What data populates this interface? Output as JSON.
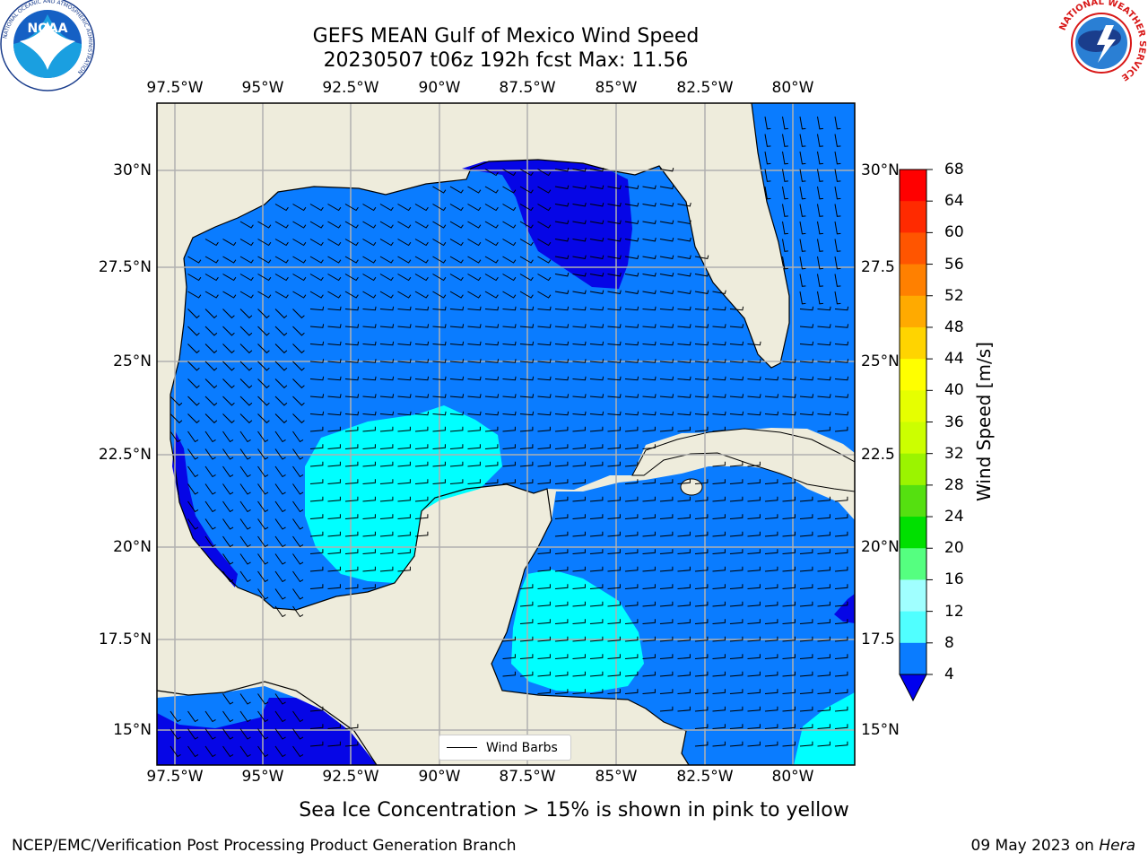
{
  "title": {
    "line1": "GEFS MEAN Gulf of Mexico Wind Speed",
    "line2": "20230507 t06z 192h fcst   Max: 11.56"
  },
  "map": {
    "lon_labels": [
      "97.5°W",
      "95°W",
      "92.5°W",
      "90°W",
      "87.5°W",
      "85°W",
      "82.5°W",
      "80°W"
    ],
    "lat_labels_left": [
      "30°N",
      "27.5°N",
      "25°N",
      "22.5°N",
      "20°N",
      "17.5°N",
      "15°N"
    ],
    "lat_labels_right": [
      "30°N",
      "27.5",
      "25°N",
      "22.5",
      "20°N",
      "17.5",
      "15°N"
    ],
    "colors": {
      "land": "#eeecdc",
      "ocean_4_8": "#0a7cff",
      "ocean_low": "#0606e6",
      "ocean_8_12": "#00ffff",
      "grid": "#b0b0b0"
    }
  },
  "legend": {
    "label": "Wind Barbs"
  },
  "colorbar": {
    "label": "Wind Speed [m/s]",
    "ticks": [
      "68",
      "64",
      "60",
      "56",
      "52",
      "48",
      "44",
      "40",
      "36",
      "32",
      "28",
      "24",
      "20",
      "16",
      "12",
      "8",
      "4"
    ],
    "colors": [
      "#ff0000",
      "#ff2a00",
      "#ff5500",
      "#ff8000",
      "#ffaa00",
      "#ffd400",
      "#ffff00",
      "#e6ff00",
      "#ccff00",
      "#9bf400",
      "#55e010",
      "#00e000",
      "#55ff80",
      "#a0ffff",
      "#50ffff",
      "#00ffff",
      "#0a7cff",
      "#0000ee"
    ]
  },
  "note": "Sea Ice Concentration > 15% is shown in pink to yellow",
  "footer": {
    "left": "NCEP/EMC/Verification Post Processing Product Generation Branch",
    "right_date": "09 May 2023 on ",
    "right_host": "Hera"
  },
  "logos": {
    "noaa_text": "NOAA",
    "noaa_ring": "NATIONAL OCEANIC AND ATMOSPHERIC ADMINISTRATION",
    "noaa_ring_bottom": "U.S. DEPARTMENT OF COMMERCE",
    "nws_ring": "NATIONAL WEATHER SERVICE"
  }
}
